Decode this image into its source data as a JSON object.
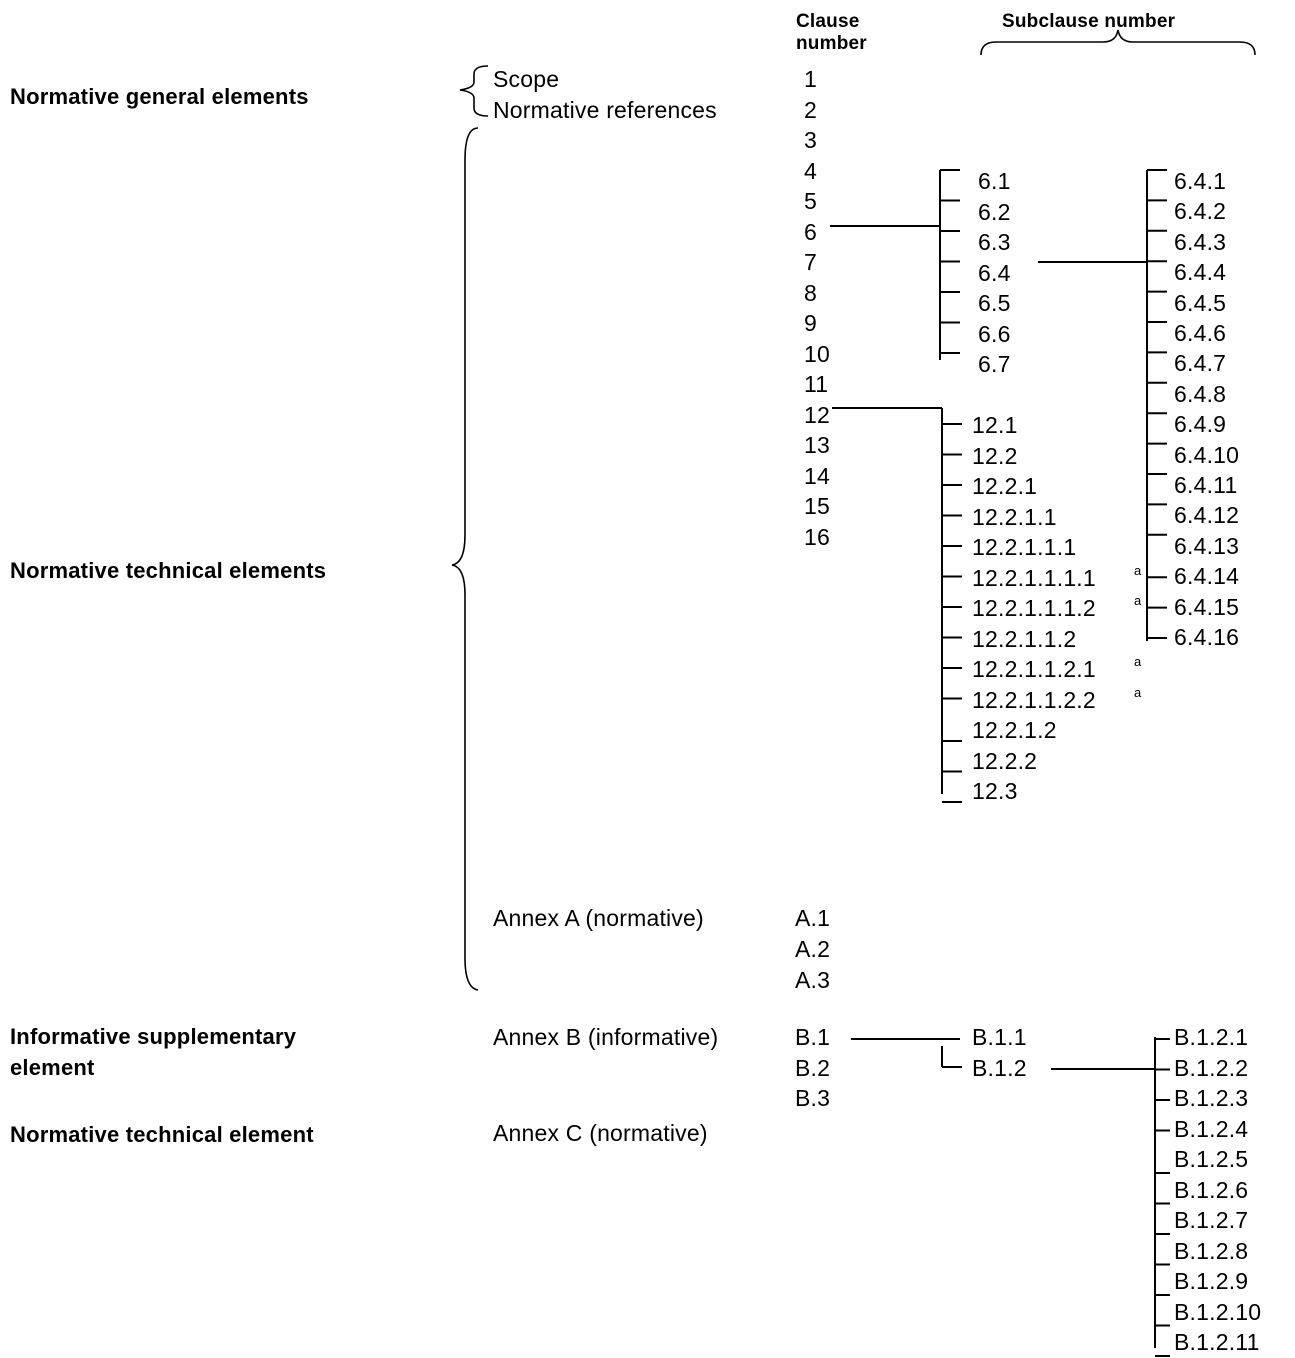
{
  "headers": {
    "clause_number": [
      "Clause",
      "number"
    ],
    "subclause_number": "Subclause number"
  },
  "categories": {
    "general": "Normative general elements",
    "technical": "Normative technical elements",
    "informative": [
      "Informative supplementary",
      "element"
    ],
    "technical_single": "Normative technical element"
  },
  "elements": {
    "scope": "Scope",
    "normative_references": "Normative references",
    "annex_a": "Annex A (normative)",
    "annex_b": "Annex B (informative)",
    "annex_c": "Annex C (normative)"
  },
  "clauses": [
    "1",
    "2",
    "3",
    "4",
    "5",
    "6",
    "7",
    "8",
    "9",
    "10",
    "11",
    "12",
    "13",
    "14",
    "15",
    "16"
  ],
  "annex_a_clauses": [
    "A.1",
    "A.2",
    "A.3"
  ],
  "annex_b_clauses": [
    "B.1",
    "B.2",
    "B.3"
  ],
  "subclauses_6": [
    "6.1",
    "6.2",
    "6.3",
    "6.4",
    "6.5",
    "6.6",
    "6.7"
  ],
  "subclauses_6_4": [
    "6.4.1",
    "6.4.2",
    "6.4.3",
    "6.4.4",
    "6.4.5",
    "6.4.6",
    "6.4.7",
    "6.4.8",
    "6.4.9",
    "6.4.10",
    "6.4.11",
    "6.4.12",
    "6.4.13",
    "6.4.14",
    "6.4.15",
    "6.4.16"
  ],
  "subclauses_12": [
    "12.1",
    "12.2",
    "12.2.1",
    "12.2.1.1",
    "12.2.1.1.1",
    "12.2.1.1.1.1",
    "12.2.1.1.1.2",
    "12.2.1.1.2",
    "12.2.1.1.2.1",
    "12.2.1.1.2.2",
    "12.2.1.2",
    "12.2.2",
    "12.3"
  ],
  "subclauses_12_footnoted": [
    "12.2.1.1.1.1",
    "12.2.1.1.1.2",
    "12.2.1.1.2.1",
    "12.2.1.1.2.2"
  ],
  "footnote_marker": "a",
  "subclauses_B1": [
    "B.1.1",
    "B.1.2"
  ],
  "subclauses_B1_2": [
    "B.1.2.1",
    "B.1.2.2",
    "B.1.2.3",
    "B.1.2.4",
    "B.1.2.5",
    "B.1.2.6",
    "B.1.2.7",
    "B.1.2.8",
    "B.1.2.9",
    "B.1.2.10",
    "B.1.2.11"
  ]
}
